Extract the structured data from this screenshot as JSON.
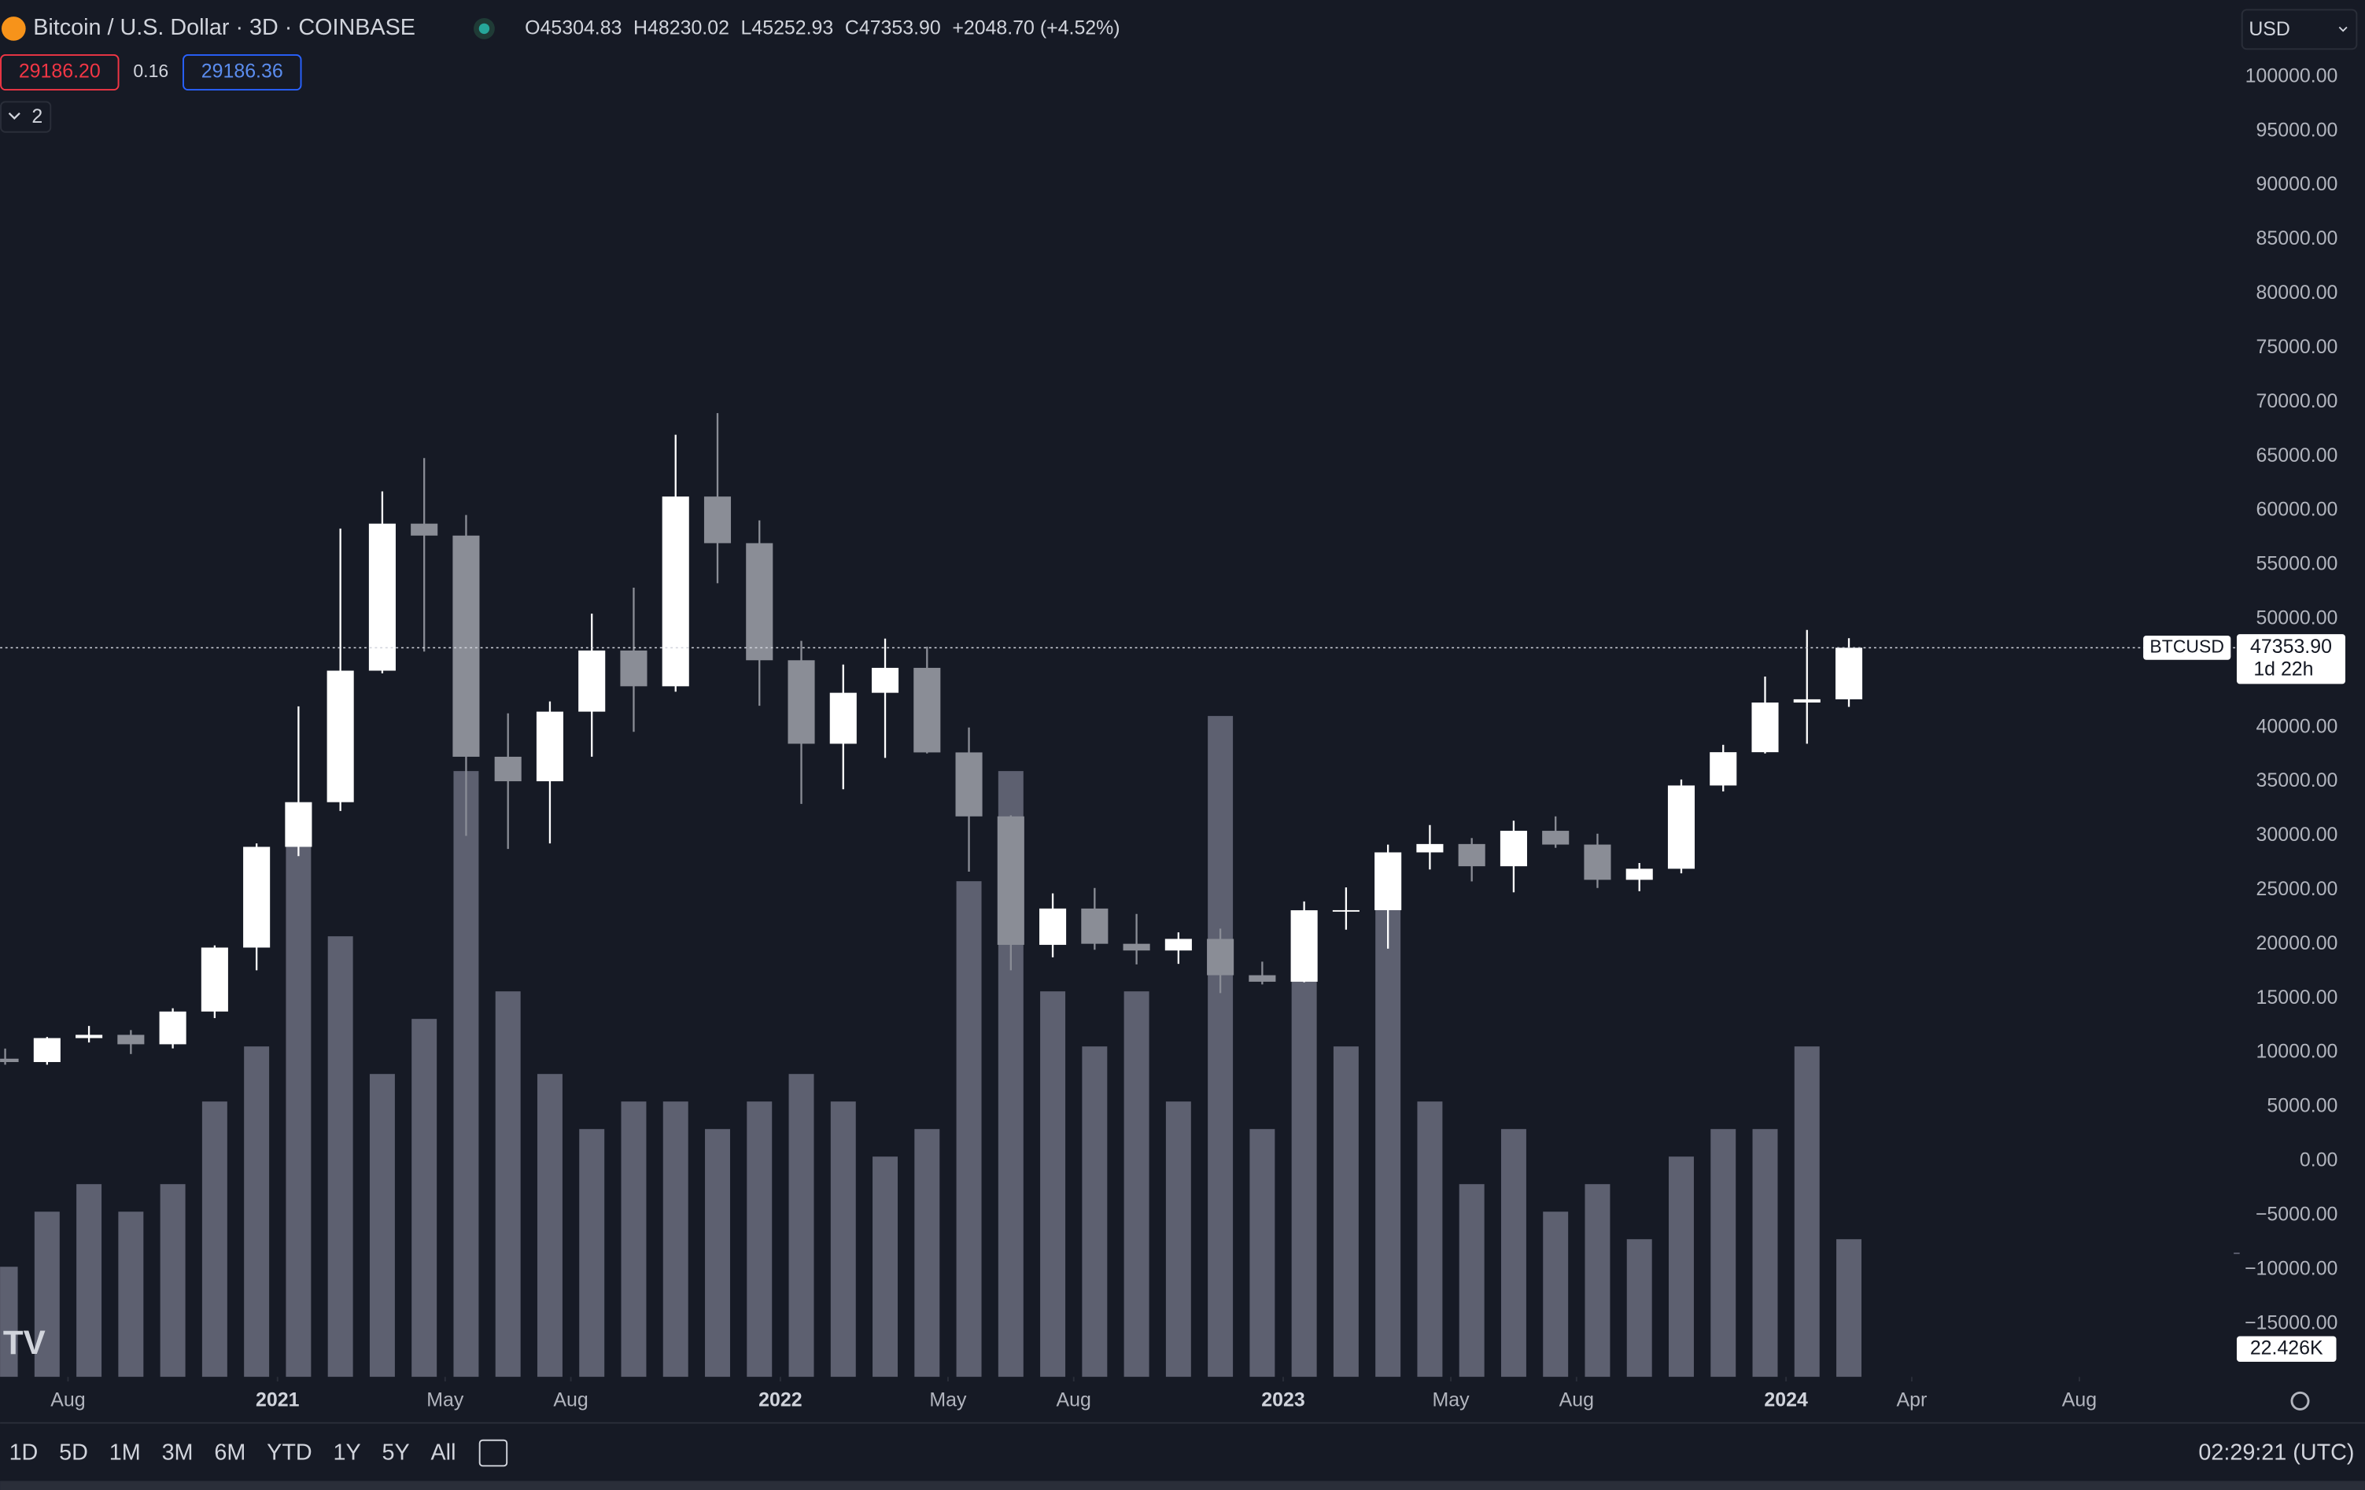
{
  "header": {
    "symbol": "Bitcoin / U.S. Dollar · 3D · COINBASE",
    "open_label": "O",
    "open": "45304.83",
    "high_label": "H",
    "high": "48230.02",
    "low_label": "L",
    "low": "45252.93",
    "close_label": "C",
    "close": "47353.90",
    "change": "+2048.70 (+4.52%)",
    "sell": "29186.20",
    "spread": "0.16",
    "buy": "29186.36",
    "indicators": "2",
    "currency": "USD"
  },
  "toolbar": {
    "ranges": [
      "1D",
      "5D",
      "1M",
      "3M",
      "6M",
      "YTD",
      "1Y",
      "5Y",
      "All"
    ],
    "clock": "02:29:21 (UTC)"
  },
  "chart_data": {
    "type": "candlestick",
    "x": [
      "2020-06",
      "2020-07",
      "2020-08",
      "2020-09",
      "2020-10",
      "2020-11",
      "2020-12",
      "2021-01",
      "2021-02",
      "2021-03",
      "2021-04",
      "2021-05",
      "2021-06",
      "2021-07",
      "2021-08",
      "2021-09",
      "2021-10",
      "2021-11",
      "2021-12",
      "2022-01",
      "2022-02",
      "2022-03",
      "2022-04",
      "2022-05",
      "2022-06",
      "2022-07",
      "2022-08",
      "2022-09",
      "2022-10",
      "2022-11",
      "2022-12",
      "2023-01",
      "2023-02",
      "2023-03",
      "2023-04",
      "2023-05",
      "2023-06",
      "2023-07",
      "2023-08",
      "2023-09",
      "2023-10",
      "2023-11",
      "2023-12",
      "2024-01",
      "2024-02"
    ],
    "open": [
      9450,
      9140,
      11350,
      11650,
      10780,
      13800,
      19700,
      28990,
      33110,
      45240,
      58800,
      57700,
      37300,
      35040,
      41460,
      47100,
      43800,
      61300,
      57000,
      46200,
      38500,
      43200,
      45500,
      37700,
      31800,
      19950,
      23300,
      20050,
      19430,
      20500,
      17150,
      16550,
      23140,
      23150,
      28480,
      29250,
      27200,
      30470,
      29200,
      25950,
      26970,
      34650,
      37720,
      42300,
      42600
    ],
    "high": [
      10380,
      11450,
      12470,
      12090,
      14100,
      19900,
      29300,
      41950,
      58350,
      61780,
      64850,
      59600,
      41300,
      42400,
      50500,
      52900,
      67000,
      69000,
      59100,
      47990,
      45800,
      48200,
      47450,
      40000,
      31900,
      24700,
      25200,
      22800,
      21100,
      21450,
      18400,
      23950,
      25250,
      29200,
      31000,
      29800,
      31400,
      31800,
      30200,
      27500,
      35200,
      38400,
      44700,
      49000,
      48230
    ],
    "low": [
      8900,
      8900,
      10950,
      9880,
      10400,
      13200,
      17600,
      28130,
      32300,
      45000,
      47000,
      30000,
      28800,
      29300,
      37300,
      39600,
      43300,
      53300,
      42000,
      32950,
      34300,
      37200,
      37600,
      26700,
      17600,
      18800,
      19500,
      18150,
      18200,
      15500,
      16300,
      16500,
      21350,
      19600,
      26900,
      25800,
      24800,
      28900,
      25200,
      24900,
      26550,
      34100,
      37600,
      38500,
      41900
    ],
    "close": [
      9140,
      11350,
      11650,
      10780,
      13800,
      19700,
      28990,
      33110,
      45240,
      58800,
      57700,
      37300,
      35040,
      41460,
      47100,
      43800,
      61300,
      57000,
      46200,
      38500,
      43200,
      45500,
      37700,
      31800,
      19950,
      23300,
      20050,
      19430,
      20500,
      17150,
      16550,
      23140,
      23150,
      28480,
      29250,
      27200,
      30470,
      29200,
      25950,
      26970,
      34650,
      37720,
      42300,
      42600,
      47353.9
    ],
    "volume": [
      20,
      30,
      35,
      30,
      35,
      50,
      60,
      100,
      80,
      55,
      65,
      110,
      70,
      55,
      45,
      50,
      50,
      45,
      50,
      55,
      50,
      40,
      45,
      90,
      110,
      70,
      60,
      70,
      50,
      120,
      45,
      80,
      60,
      85,
      50,
      35,
      45,
      30,
      35,
      25,
      40,
      45,
      45,
      60,
      25
    ],
    "up_color": "#ffffff",
    "down_color": "#8a8d96",
    "volume_color": "#5d6070",
    "xlim": [
      "2020-06",
      "2024-11"
    ],
    "xticks": [
      {
        "value": "2020-08",
        "label": "Aug"
      },
      {
        "value": "2021-01",
        "label": "2021"
      },
      {
        "value": "2021-05",
        "label": "May"
      },
      {
        "value": "2021-08",
        "label": "Aug"
      },
      {
        "value": "2022-01",
        "label": "2022"
      },
      {
        "value": "2022-05",
        "label": "May"
      },
      {
        "value": "2022-08",
        "label": "Aug"
      },
      {
        "value": "2023-01",
        "label": "2023"
      },
      {
        "value": "2023-05",
        "label": "May"
      },
      {
        "value": "2023-08",
        "label": "Aug"
      },
      {
        "value": "2024-01",
        "label": "2024"
      },
      {
        "value": "2024-04",
        "label": "Apr"
      },
      {
        "value": "2024-08",
        "label": "Aug"
      }
    ],
    "ylim": [
      -19900,
      107100
    ],
    "yticks": [
      {
        "value": 100000,
        "label": "100000.00"
      },
      {
        "value": 95000,
        "label": "95000.00"
      },
      {
        "value": 90000,
        "label": "90000.00"
      },
      {
        "value": 85000,
        "label": "85000.00"
      },
      {
        "value": 80000,
        "label": "80000.00"
      },
      {
        "value": 75000,
        "label": "75000.00"
      },
      {
        "value": 70000,
        "label": "70000.00"
      },
      {
        "value": 65000,
        "label": "65000.00"
      },
      {
        "value": 60000,
        "label": "60000.00"
      },
      {
        "value": 55000,
        "label": "55000.00"
      },
      {
        "value": 50000,
        "label": "50000.00"
      },
      {
        "value": 45000,
        "label": "45000.00"
      },
      {
        "value": 40000,
        "label": "40000.00"
      },
      {
        "value": 35000,
        "label": "35000.00"
      },
      {
        "value": 30000,
        "label": "30000.00"
      },
      {
        "value": 25000,
        "label": "25000.00"
      },
      {
        "value": 20000,
        "label": "20000.00"
      },
      {
        "value": 15000,
        "label": "15000.00"
      },
      {
        "value": 10000,
        "label": "10000.00"
      },
      {
        "value": 5000,
        "label": "5000.00"
      },
      {
        "value": 0,
        "label": "0.00"
      },
      {
        "value": -5000,
        "label": "−5000.00"
      },
      {
        "value": -10000,
        "label": "−10000.00"
      },
      {
        "value": -15000,
        "label": "−15000.00"
      }
    ],
    "vlim": [
      0,
      250
    ],
    "volume_last": {
      "value": 22.426,
      "label": "22.426K"
    },
    "last_symbol": "BTCUSD",
    "last_price": {
      "value": 47353.9,
      "label": "47353.90"
    },
    "countdown": "1d 22h",
    "grid": false
  }
}
